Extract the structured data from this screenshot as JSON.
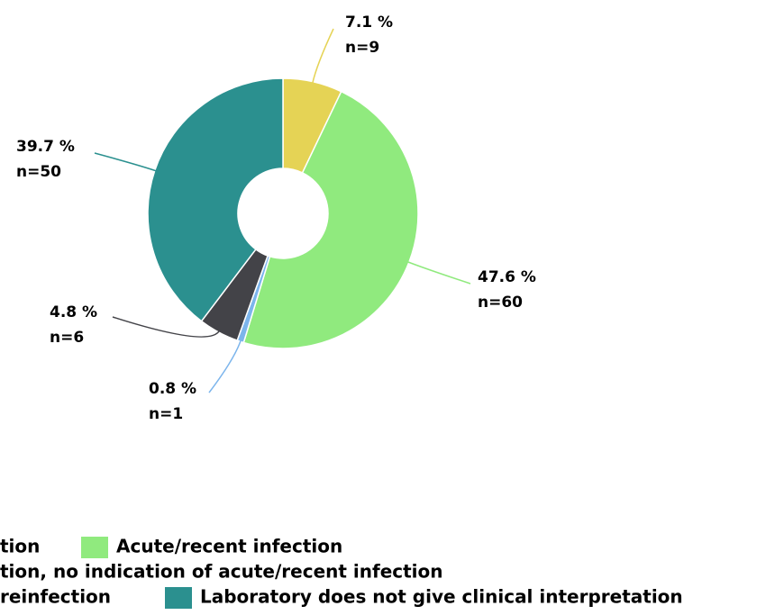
{
  "chart_data": {
    "type": "pie",
    "categories": [
      "tion",
      "Acute/recent infection",
      "tion, no indication of acute/recent infection",
      "reinfection",
      "Laboratory does not give clinical interpretation"
    ],
    "values": [
      7.1,
      47.6,
      0.8,
      4.8,
      39.7
    ],
    "value_labels": [
      "7.1 %",
      "47.6 %",
      "0.8 %",
      "4.8 %",
      "39.7 %"
    ],
    "count_labels": [
      "n=9",
      "n=60",
      "n=1",
      "n=6",
      "n=50"
    ],
    "colors": [
      "#e5d355",
      "#90ea7e",
      "#7cb5ec",
      "#434348",
      "#2b908f"
    ],
    "donut": true
  }
}
